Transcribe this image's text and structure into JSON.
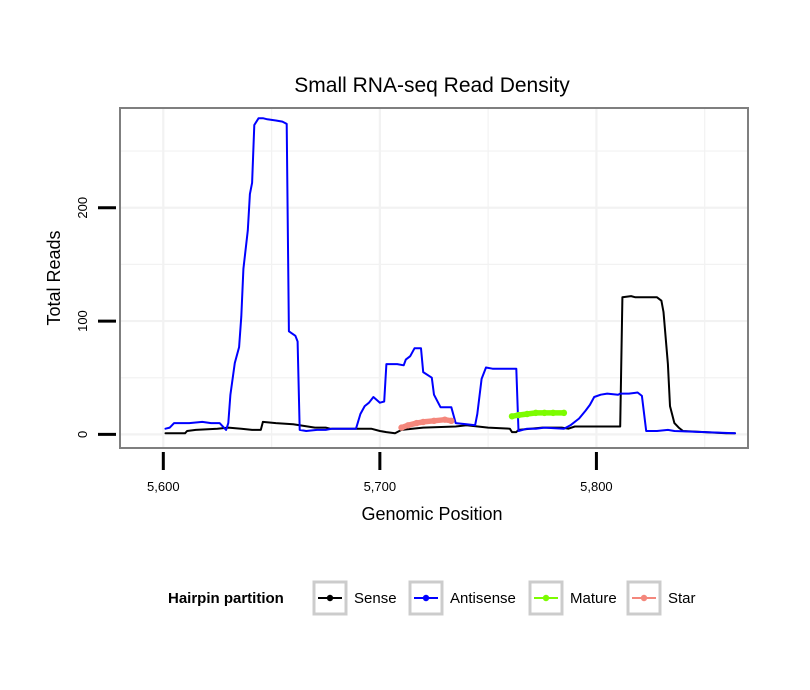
{
  "chart_data": {
    "type": "line",
    "title": "Small RNA-seq Read Density",
    "xlabel": "Genomic Position",
    "ylabel": "Total Reads",
    "xlim": [
      5580,
      5870
    ],
    "ylim": [
      -12,
      288
    ],
    "x_ticks": [
      5600,
      5700,
      5800
    ],
    "x_tick_labels": [
      "5,600",
      "5,700",
      "5,800"
    ],
    "y_ticks": [
      0,
      100,
      200
    ],
    "y_tick_labels": [
      "0",
      "100",
      "200"
    ],
    "grid": true,
    "legend": {
      "title": "Hairpin partition",
      "position": "bottom"
    },
    "series": [
      {
        "name": "Sense",
        "color": "#000000",
        "points": [
          [
            5601,
            1
          ],
          [
            5610,
            1
          ],
          [
            5611,
            3
          ],
          [
            5615,
            4
          ],
          [
            5625,
            5
          ],
          [
            5630,
            6
          ],
          [
            5636,
            5
          ],
          [
            5641,
            4
          ],
          [
            5645,
            4
          ],
          [
            5646,
            11
          ],
          [
            5652,
            10
          ],
          [
            5660,
            9
          ],
          [
            5670,
            6
          ],
          [
            5675,
            6
          ],
          [
            5677,
            5
          ],
          [
            5690,
            5
          ],
          [
            5696,
            5
          ],
          [
            5700,
            3
          ],
          [
            5703,
            2
          ],
          [
            5707,
            1
          ],
          [
            5710,
            4
          ],
          [
            5720,
            6
          ],
          [
            5735,
            7
          ],
          [
            5740,
            8
          ],
          [
            5750,
            6
          ],
          [
            5760,
            5
          ],
          [
            5761,
            2
          ],
          [
            5763,
            2
          ],
          [
            5764,
            4
          ],
          [
            5775,
            6
          ],
          [
            5784,
            6
          ],
          [
            5787,
            5
          ],
          [
            5790,
            7
          ],
          [
            5800,
            7
          ],
          [
            5811,
            7
          ],
          [
            5812,
            121
          ],
          [
            5816,
            122
          ],
          [
            5818,
            121
          ],
          [
            5828,
            121
          ],
          [
            5830,
            118
          ],
          [
            5831,
            108
          ],
          [
            5833,
            62
          ],
          [
            5834,
            25
          ],
          [
            5836,
            10
          ],
          [
            5838,
            6
          ],
          [
            5840,
            3
          ],
          [
            5850,
            2
          ],
          [
            5860,
            1
          ],
          [
            5864,
            1
          ]
        ]
      },
      {
        "name": "Antisense",
        "color": "#0000ff",
        "points": [
          [
            5601,
            5
          ],
          [
            5603,
            6
          ],
          [
            5605,
            10
          ],
          [
            5612,
            10
          ],
          [
            5618,
            11
          ],
          [
            5622,
            10
          ],
          [
            5626,
            10
          ],
          [
            5629,
            4
          ],
          [
            5630,
            10
          ],
          [
            5631,
            35
          ],
          [
            5633,
            63
          ],
          [
            5635,
            77
          ],
          [
            5636,
            104
          ],
          [
            5637,
            146
          ],
          [
            5639,
            180
          ],
          [
            5640,
            212
          ],
          [
            5641,
            222
          ],
          [
            5642,
            273
          ],
          [
            5644,
            279
          ],
          [
            5646,
            279
          ],
          [
            5648,
            278
          ],
          [
            5652,
            277
          ],
          [
            5655,
            276
          ],
          [
            5657,
            274
          ],
          [
            5658,
            91
          ],
          [
            5661,
            87
          ],
          [
            5662,
            82
          ],
          [
            5663,
            4
          ],
          [
            5666,
            3
          ],
          [
            5671,
            4
          ],
          [
            5675,
            4
          ],
          [
            5678,
            5
          ],
          [
            5689,
            5
          ],
          [
            5691,
            18
          ],
          [
            5693,
            25
          ],
          [
            5695,
            28
          ],
          [
            5697,
            33
          ],
          [
            5700,
            28
          ],
          [
            5702,
            29
          ],
          [
            5703,
            62
          ],
          [
            5708,
            62
          ],
          [
            5711,
            61
          ],
          [
            5712,
            66
          ],
          [
            5714,
            69
          ],
          [
            5716,
            76
          ],
          [
            5719,
            76
          ],
          [
            5720,
            55
          ],
          [
            5724,
            50
          ],
          [
            5725,
            35
          ],
          [
            5728,
            24
          ],
          [
            5733,
            24
          ],
          [
            5735,
            10
          ],
          [
            5740,
            9
          ],
          [
            5744,
            8
          ],
          [
            5745,
            18
          ],
          [
            5747,
            49
          ],
          [
            5749,
            59
          ],
          [
            5752,
            58
          ],
          [
            5758,
            58
          ],
          [
            5763,
            58
          ],
          [
            5764,
            3
          ],
          [
            5768,
            5
          ],
          [
            5772,
            5
          ],
          [
            5776,
            6
          ],
          [
            5785,
            5
          ],
          [
            5788,
            8
          ],
          [
            5792,
            14
          ],
          [
            5795,
            21
          ],
          [
            5797,
            26
          ],
          [
            5799,
            33
          ],
          [
            5802,
            35
          ],
          [
            5805,
            36
          ],
          [
            5810,
            35
          ],
          [
            5811,
            36
          ],
          [
            5815,
            36
          ],
          [
            5819,
            37
          ],
          [
            5821,
            34
          ],
          [
            5823,
            3
          ],
          [
            5828,
            3
          ],
          [
            5833,
            4
          ],
          [
            5836,
            3
          ],
          [
            5850,
            2
          ],
          [
            5864,
            1
          ]
        ]
      },
      {
        "name": "Mature",
        "color": "#7cfc00",
        "points": [
          [
            5761,
            16
          ],
          [
            5764,
            17
          ],
          [
            5768,
            18
          ],
          [
            5772,
            19
          ],
          [
            5776,
            19
          ],
          [
            5780,
            19
          ],
          [
            5785,
            19
          ]
        ]
      },
      {
        "name": "Star",
        "color": "#f4877c",
        "points": [
          [
            5710,
            6
          ],
          [
            5713,
            8
          ],
          [
            5717,
            10
          ],
          [
            5720,
            11
          ],
          [
            5725,
            12
          ],
          [
            5730,
            13
          ],
          [
            5733,
            12
          ]
        ]
      }
    ]
  }
}
